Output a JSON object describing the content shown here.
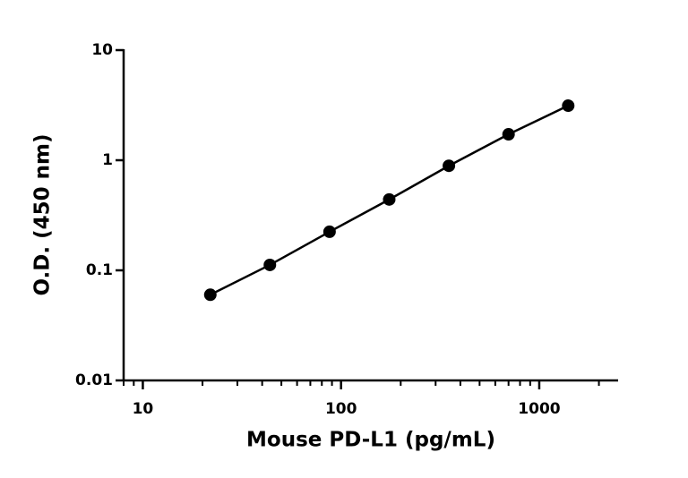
{
  "chart_data": {
    "type": "scatter",
    "x_label": "Mouse PD-L1 (pg/mL)",
    "y_label": "O.D. (450 nm)",
    "series": [
      {
        "color": "#000000",
        "x": [
          21.9,
          43.75,
          87.5,
          175,
          350,
          700,
          1400
        ],
        "values": [
          0.06,
          0.112,
          0.224,
          0.44,
          0.89,
          1.72,
          3.13
        ]
      }
    ],
    "xlim": [
      8,
      2500
    ],
    "xticks": [
      10,
      100,
      1000
    ],
    "ylim": [
      0.01,
      10
    ],
    "yticks": [
      0.01,
      0.1,
      1,
      10
    ],
    "x_log": true,
    "y_log": true,
    "minor_x_ticks": true,
    "fit_line": true
  }
}
